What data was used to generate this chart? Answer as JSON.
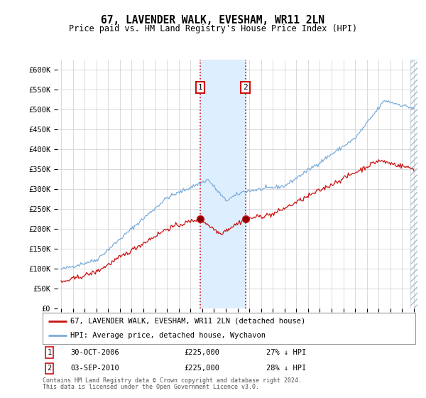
{
  "title": "67, LAVENDER WALK, EVESHAM, WR11 2LN",
  "subtitle": "Price paid vs. HM Land Registry's House Price Index (HPI)",
  "ylim": [
    0,
    625000
  ],
  "yticks": [
    0,
    50000,
    100000,
    150000,
    200000,
    250000,
    300000,
    350000,
    400000,
    450000,
    500000,
    550000,
    600000
  ],
  "ytick_labels": [
    "£0",
    "£50K",
    "£100K",
    "£150K",
    "£200K",
    "£250K",
    "£300K",
    "£350K",
    "£400K",
    "£450K",
    "£500K",
    "£550K",
    "£600K"
  ],
  "hpi_color": "#7aaddb",
  "price_color": "#cc1111",
  "t1_year": 2006.83,
  "t2_year": 2010.67,
  "t1_price": 225000,
  "t2_price": 225000,
  "shade_color": "#ddeeff",
  "grid_color": "#cccccc",
  "plot_bg": "#ffffff",
  "fig_bg": "#ffffff",
  "legend_entries": [
    "67, LAVENDER WALK, EVESHAM, WR11 2LN (detached house)",
    "HPI: Average price, detached house, Wychavon"
  ],
  "footer_line1": "Contains HM Land Registry data © Crown copyright and database right 2024.",
  "footer_line2": "This data is licensed under the Open Government Licence v3.0."
}
